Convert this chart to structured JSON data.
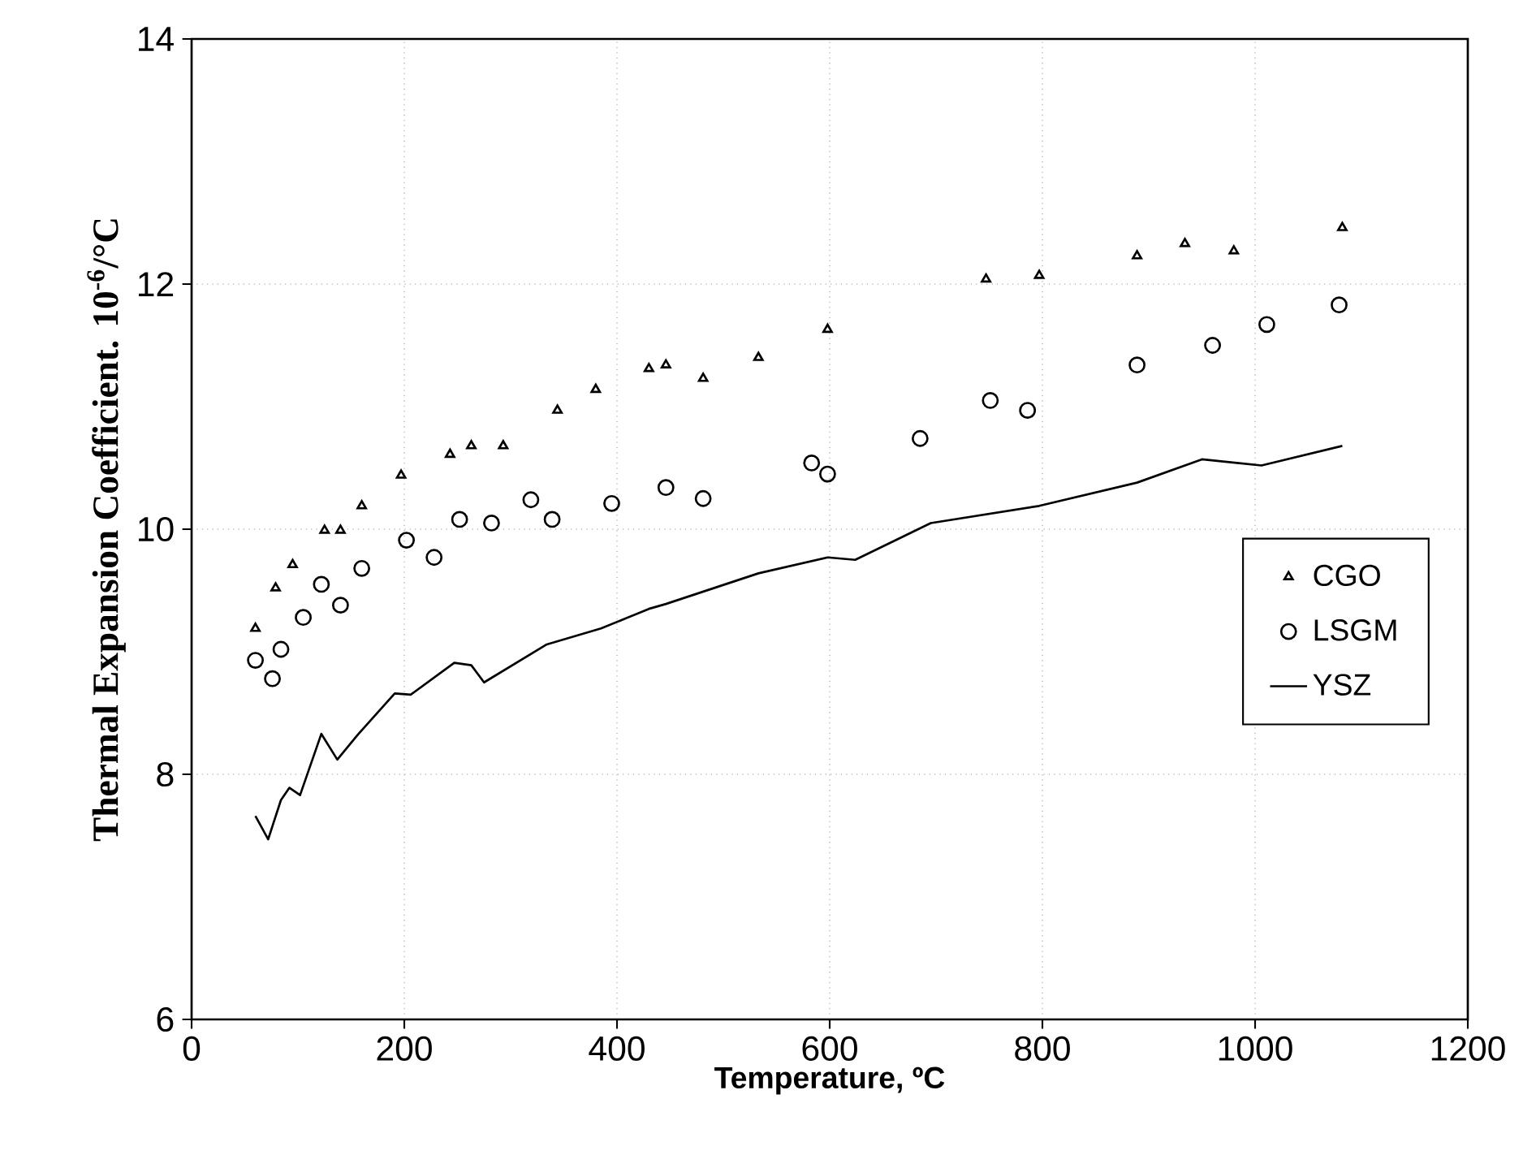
{
  "chart_data": {
    "type": "scatter",
    "xlabel": "Temperature, ºC",
    "ylabel": "Thermal Expansion Coefficient. 10$^{-6}$/°C",
    "xlim": [
      0,
      1200
    ],
    "xticks": [
      0,
      200,
      400,
      600,
      800,
      1000,
      1200
    ],
    "ylim": [
      6,
      14
    ],
    "yticks": [
      6,
      8,
      10,
      12,
      14
    ],
    "grid": true,
    "legend": "right",
    "series": [
      {
        "name": "CGO",
        "color": "#000000",
        "marker": "triangle",
        "x": [
          60,
          79,
          95,
          125,
          140,
          160,
          197,
          243,
          263,
          293,
          344,
          380,
          430,
          446,
          481,
          533,
          598,
          747,
          797,
          889,
          934,
          980,
          1082
        ],
        "values": [
          9.19,
          9.52,
          9.71,
          9.99,
          9.99,
          10.19,
          10.44,
          10.61,
          10.68,
          10.68,
          10.97,
          11.14,
          11.31,
          11.34,
          11.23,
          11.4,
          11.63,
          12.04,
          12.07,
          12.23,
          12.33,
          12.27,
          12.46
        ]
      },
      {
        "name": "LSGM",
        "color": "#000000",
        "marker": "circle",
        "x": [
          60,
          76,
          84,
          105,
          122,
          140,
          160,
          202,
          228,
          252,
          282,
          319,
          339,
          395,
          446,
          481,
          583,
          598,
          685,
          751,
          786,
          889,
          960,
          1011,
          1079
        ],
        "values": [
          8.93,
          8.78,
          9.02,
          9.28,
          9.55,
          9.38,
          9.68,
          9.91,
          9.77,
          10.08,
          10.05,
          10.24,
          10.08,
          10.21,
          10.34,
          10.25,
          10.54,
          10.45,
          10.74,
          11.05,
          10.97,
          11.34,
          11.5,
          11.67,
          11.83
        ]
      },
      {
        "name": "YSZ",
        "color": "#000000",
        "type": "line",
        "marker": "none",
        "line_style": "solid",
        "x": [
          60,
          72,
          84,
          92,
          102,
          122,
          137,
          156,
          191,
          206,
          247,
          263,
          275,
          334,
          385,
          430,
          446,
          533,
          598,
          624,
          695,
          797,
          889,
          950,
          1006,
          1082
        ],
        "values": [
          7.66,
          7.47,
          7.79,
          7.89,
          7.83,
          8.33,
          8.12,
          8.32,
          8.66,
          8.65,
          8.91,
          8.89,
          8.75,
          9.06,
          9.19,
          9.35,
          9.39,
          9.64,
          9.77,
          9.75,
          10.05,
          10.19,
          10.38,
          10.57,
          10.52,
          10.68
        ]
      }
    ]
  }
}
